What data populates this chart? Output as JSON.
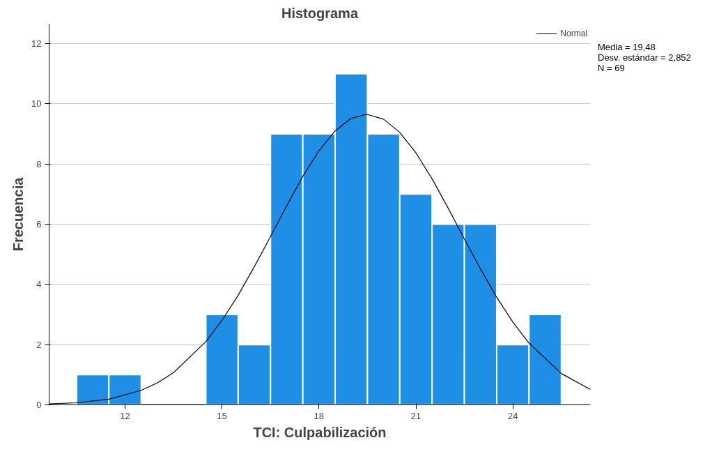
{
  "chart_data": {
    "type": "histogram",
    "title": "Histograma",
    "xlabel": "TCI: Culpabilización",
    "ylabel": "Frecuencia",
    "bins": [
      10.5,
      11.5,
      12.5,
      13.5,
      14.5,
      15.5,
      16.5,
      17.5,
      18.5,
      19.5,
      20.5,
      21.5,
      22.5,
      23.5,
      24.5,
      25.5
    ],
    "values": [
      1,
      1,
      0,
      0,
      3,
      2,
      9,
      9,
      11,
      9,
      7,
      6,
      6,
      2,
      3
    ],
    "color": "#1f8fe5",
    "series": [
      {
        "name": "Normal",
        "type": "line",
        "color": "#000000",
        "x": [
          9.65,
          10.5,
          11.5,
          12.5,
          13,
          13.5,
          14.5,
          15,
          15.5,
          16,
          16.5,
          17,
          17.5,
          18,
          18.5,
          19,
          19.48,
          20,
          20.5,
          21,
          21.5,
          22,
          22.5,
          23,
          23.5,
          24,
          24.5,
          25.5,
          26.4
        ],
        "values": [
          0.03,
          0.07,
          0.19,
          0.48,
          0.73,
          1.07,
          2.1,
          2.81,
          3.64,
          4.59,
          5.59,
          6.61,
          7.59,
          8.44,
          9.1,
          9.52,
          9.65,
          9.49,
          9.05,
          8.37,
          7.51,
          6.53,
          5.51,
          4.51,
          3.57,
          2.75,
          2.05,
          1.04,
          0.51
        ]
      }
    ],
    "xlim": [
      9.65,
      26.4
    ],
    "ylim": [
      0,
      12.65
    ],
    "xticks": [
      12,
      15,
      18,
      21,
      24
    ],
    "yticks": [
      0,
      2,
      4,
      6,
      8,
      10,
      12
    ],
    "grid": "y",
    "legend": "top right",
    "annotations": [
      "Media = 19,48",
      "Desv. estándar = 2,852",
      "N = 69"
    ]
  }
}
